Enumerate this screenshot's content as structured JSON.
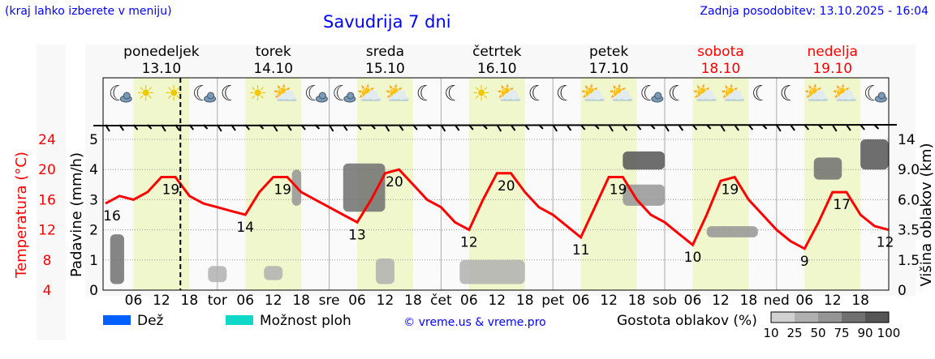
{
  "header": {
    "hint": "(kraj lahko izberete v meniju)",
    "title": "Savudrija 7 dni",
    "updated": "Zadnja posodobitev: 13.10.2025 - 16:04"
  },
  "chart_data": {
    "type": "line",
    "title": "Savudrija 7 dni",
    "days": [
      {
        "name": "ponedeljek",
        "date": "13.10",
        "weekend": false,
        "abbr": ""
      },
      {
        "name": "torek",
        "date": "14.10",
        "weekend": false,
        "abbr": "tor"
      },
      {
        "name": "sreda",
        "date": "15.10",
        "weekend": false,
        "abbr": "sre"
      },
      {
        "name": "četrtek",
        "date": "16.10",
        "weekend": false,
        "abbr": "čet"
      },
      {
        "name": "petek",
        "date": "17.10",
        "weekend": false,
        "abbr": "pet"
      },
      {
        "name": "sobota",
        "date": "18.10",
        "weekend": true,
        "abbr": "sob"
      },
      {
        "name": "nedelja",
        "date": "19.10",
        "weekend": true,
        "abbr": "ned"
      }
    ],
    "hour_ticks": [
      "06",
      "12",
      "18"
    ],
    "now_hour": 16.07,
    "y_left_precip": {
      "label": "Padavine (mm/h)",
      "ticks": [
        0,
        1,
        2,
        3,
        4,
        5
      ],
      "range": [
        0,
        5
      ]
    },
    "y_left_temp": {
      "label": "Temperatura (°C)",
      "ticks": [
        4,
        8,
        12,
        16,
        20,
        24
      ],
      "range": [
        4,
        24
      ]
    },
    "y_right_cloud": {
      "label": "Višina oblakov (km)",
      "ticks": [
        "0",
        "1.5",
        "3.5",
        "6.0",
        "9.0",
        "14"
      ]
    },
    "temperature_3h": [
      15.5,
      16.5,
      16,
      17,
      19,
      19,
      16.5,
      15.5,
      15,
      14.5,
      14,
      17,
      19,
      19,
      17,
      16,
      15,
      14,
      13,
      16,
      19.5,
      20,
      18,
      16,
      15,
      13,
      12,
      16,
      19.5,
      19.5,
      17,
      15,
      14,
      12.5,
      11,
      15,
      19,
      19,
      16,
      14,
      13,
      11.5,
      10,
      14,
      18.5,
      19,
      16,
      14,
      12,
      10.5,
      9.5,
      13,
      17,
      17,
      14,
      12.5,
      12
    ],
    "temp_labels": [
      {
        "hour": 0,
        "value": "16"
      },
      {
        "hour": 14,
        "value": "19"
      },
      {
        "hour": 30,
        "value": "14"
      },
      {
        "hour": 38,
        "value": "19"
      },
      {
        "hour": 54,
        "value": "13"
      },
      {
        "hour": 62,
        "value": "20"
      },
      {
        "hour": 78,
        "value": "12"
      },
      {
        "hour": 86,
        "value": "20"
      },
      {
        "hour": 102,
        "value": "11"
      },
      {
        "hour": 110,
        "value": "19"
      },
      {
        "hour": 126,
        "value": "10"
      },
      {
        "hour": 134,
        "value": "19"
      },
      {
        "hour": 150,
        "value": "9"
      },
      {
        "hour": 158,
        "value": "17"
      },
      {
        "hour": 168,
        "value": "12"
      }
    ],
    "icons": [
      "moon-cloud",
      "sun",
      "sun",
      "moon-cloud",
      "moon",
      "sun",
      "sun-cloud",
      "moon-cloud",
      "moon-cloud",
      "sun-cloud",
      "sun-cloud",
      "moon",
      "moon",
      "sun",
      "sun-cloud",
      "moon",
      "moon",
      "sun-cloud",
      "sun-cloud",
      "moon-cloud",
      "moon",
      "sun-cloud",
      "sun-cloud",
      "moon",
      "moon",
      "sun-cloud",
      "sun-cloud",
      "moon-cloud"
    ],
    "clouds": [
      {
        "h0": 1,
        "h1": 4,
        "km0": 0.3,
        "km1": 3.2,
        "density": 75
      },
      {
        "h0": 22,
        "h1": 26,
        "km0": 0.4,
        "km1": 1.2,
        "density": 25
      },
      {
        "h0": 34,
        "h1": 38,
        "km0": 0.5,
        "km1": 1.2,
        "density": 25
      },
      {
        "h0": 40,
        "h1": 42,
        "km0": 5.5,
        "km1": 9,
        "density": 50
      },
      {
        "h0": 51,
        "h1": 60,
        "km0": 5,
        "km1": 10,
        "density": 75
      },
      {
        "h0": 58,
        "h1": 62,
        "km0": 0.3,
        "km1": 1.6,
        "density": 25
      },
      {
        "h0": 76,
        "h1": 90,
        "km0": 0.3,
        "km1": 1.5,
        "density": 25
      },
      {
        "h0": 111,
        "h1": 120,
        "km0": 9,
        "km1": 12,
        "density": 90
      },
      {
        "h0": 111,
        "h1": 120,
        "km0": 5.5,
        "km1": 7.5,
        "density": 50
      },
      {
        "h0": 129,
        "h1": 140,
        "km0": 3,
        "km1": 3.8,
        "density": 50
      },
      {
        "h0": 152,
        "h1": 158,
        "km0": 8,
        "km1": 11,
        "density": 75
      },
      {
        "h0": 162,
        "h1": 168,
        "km0": 9,
        "km1": 14,
        "density": 90
      }
    ]
  },
  "legend": {
    "rain": "Dež",
    "storm": "Možnost ploh",
    "credit": "© vreme.us & vreme.pro",
    "cloud_density": "Gostota oblakov (%)",
    "density_ticks": [
      "10",
      "25",
      "50",
      "75",
      "90",
      "100"
    ],
    "rain_color": "#0060ff",
    "storm_color": "#10d8c8"
  }
}
